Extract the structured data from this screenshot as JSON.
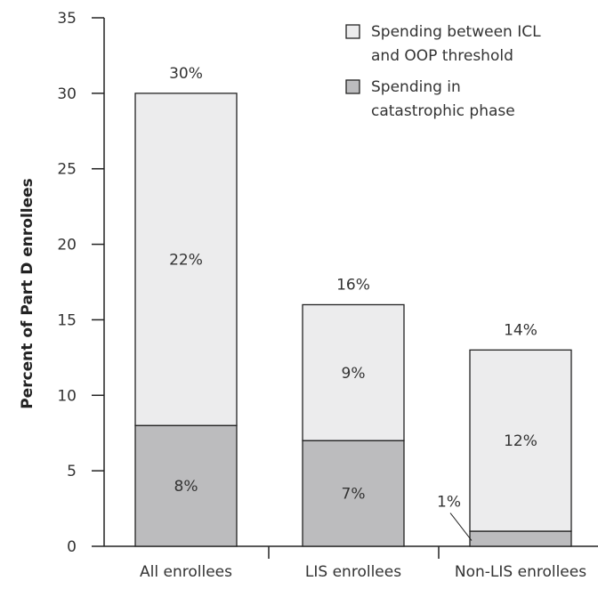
{
  "chart_data": {
    "type": "bar",
    "stacked": true,
    "title": "",
    "xlabel": "",
    "ylabel": "Percent of Part D enrollees",
    "ylim": [
      0,
      35
    ],
    "yticks": [
      "0",
      "5",
      "10",
      "15",
      "20",
      "25",
      "30",
      "35"
    ],
    "categories": [
      "All enrollees",
      "LIS enrollees",
      "Non-LIS enrollees"
    ],
    "series": [
      {
        "name": "Spending in catastrophic phase",
        "values": [
          8,
          7,
          1
        ],
        "labels": [
          "8%",
          "7%",
          "1%"
        ],
        "color": "#bcbcbe"
      },
      {
        "name": "Spending between ICL and OOP threshold",
        "values": [
          22,
          9,
          12
        ],
        "labels": [
          "22%",
          "9%",
          "12%"
        ],
        "color": "#ececed"
      }
    ],
    "totals": [
      "30%",
      "16%",
      "14%"
    ],
    "legend": {
      "position": "top-right",
      "items": [
        {
          "lines": [
            "Spending between ICL",
            "and OOP threshold"
          ],
          "color": "#ececed"
        },
        {
          "lines": [
            "Spending in",
            "catastrophic phase"
          ],
          "color": "#bcbcbe"
        }
      ]
    },
    "grid": false
  }
}
